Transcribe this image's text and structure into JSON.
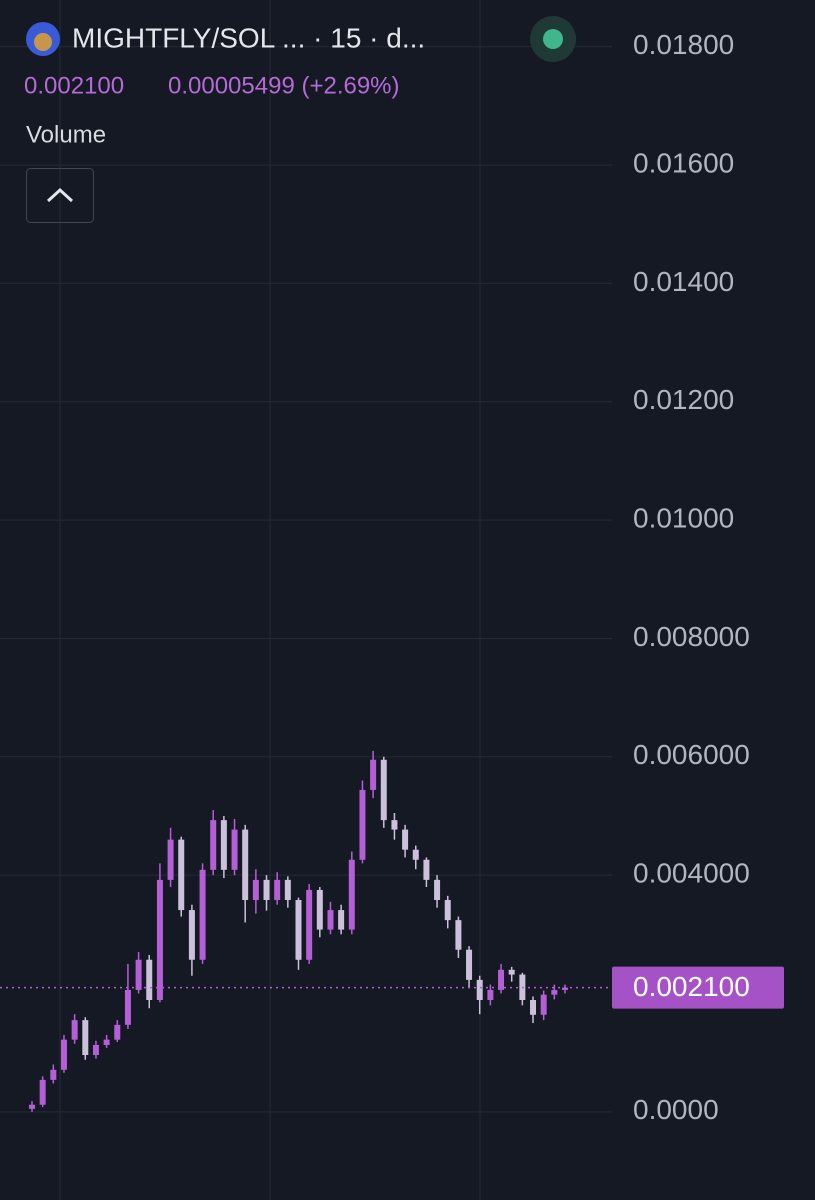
{
  "header": {
    "title": "MIGHTFLY/SOL ...  · 15 · d...",
    "change": "0.00005499 (+2.69%)",
    "volume_label": "Volume"
  },
  "chart_data": {
    "type": "candlestick",
    "ylim": [
      -0.00149,
      0.01879
    ],
    "yticks": [
      {
        "value": 0,
        "label": "0.0000"
      },
      {
        "value": 0.004,
        "label": "0.004000"
      },
      {
        "value": 0.006,
        "label": "0.006000"
      },
      {
        "value": 0.008,
        "label": "0.008000"
      },
      {
        "value": 0.01,
        "label": "0.01000"
      },
      {
        "value": 0.012,
        "label": "0.01200"
      },
      {
        "value": 0.014,
        "label": "0.01400"
      },
      {
        "value": 0.016,
        "label": "0.01600"
      },
      {
        "value": 0.018,
        "label": "0.01800"
      }
    ],
    "grid": true,
    "up_color": "#b45fd6",
    "down_color": "#cbc1db",
    "last_price": {
      "value": 0.0021,
      "label": "0.002100"
    },
    "open": [
      5e-05,
      0.00012,
      0.00054,
      0.00071,
      0.00122,
      0.00155,
      0.00096,
      0.00113,
      0.00122,
      0.00147,
      0.00206,
      0.00257,
      0.00189,
      0.00392,
      0.0046,
      0.00341,
      0.00257,
      0.00409,
      0.00493,
      0.00409,
      0.00477,
      0.00358,
      0.00392,
      0.00358,
      0.00392,
      0.00358,
      0.00257,
      0.00375,
      0.00308,
      0.00341,
      0.00308,
      0.00426,
      0.00544,
      0.00595,
      0.00493,
      0.00477,
      0.00443,
      0.00426,
      0.00392,
      0.00358,
      0.00324,
      0.00274,
      0.00223,
      0.00189,
      0.00206,
      0.0024,
      0.00232,
      0.00189,
      0.00164,
      0.00198,
      0.00206
    ],
    "close": [
      0.00012,
      0.00054,
      0.00071,
      0.00122,
      0.00155,
      0.00096,
      0.00113,
      0.00122,
      0.00147,
      0.00206,
      0.00257,
      0.00189,
      0.00392,
      0.0046,
      0.00341,
      0.00257,
      0.00409,
      0.00493,
      0.00409,
      0.00477,
      0.00358,
      0.00392,
      0.00358,
      0.00392,
      0.00358,
      0.00257,
      0.00375,
      0.00308,
      0.00341,
      0.00308,
      0.00426,
      0.00544,
      0.00595,
      0.00493,
      0.00477,
      0.00443,
      0.00426,
      0.00392,
      0.00358,
      0.00324,
      0.00274,
      0.00223,
      0.00189,
      0.00206,
      0.0024,
      0.00232,
      0.00189,
      0.00164,
      0.00198,
      0.00206,
      0.0021
    ],
    "high": [
      0.00018,
      0.0006,
      0.0008,
      0.0013,
      0.00165,
      0.0016,
      0.0012,
      0.0013,
      0.00155,
      0.0025,
      0.0027,
      0.00265,
      0.0042,
      0.0048,
      0.00465,
      0.0035,
      0.0042,
      0.0051,
      0.005,
      0.00495,
      0.00485,
      0.0041,
      0.004,
      0.00405,
      0.00398,
      0.00362,
      0.00385,
      0.0038,
      0.00355,
      0.0035,
      0.0044,
      0.0056,
      0.0061,
      0.006,
      0.00505,
      0.00485,
      0.0045,
      0.0043,
      0.004,
      0.00365,
      0.0033,
      0.0028,
      0.0023,
      0.00215,
      0.0025,
      0.00245,
      0.00235,
      0.00195,
      0.00205,
      0.00215,
      0.00215
    ],
    "low": [
      0.0,
      8e-05,
      0.00048,
      0.00066,
      0.00115,
      0.00088,
      0.0009,
      0.00108,
      0.00118,
      0.0014,
      0.002,
      0.00175,
      0.00185,
      0.0038,
      0.0033,
      0.0023,
      0.0025,
      0.004,
      0.00395,
      0.004,
      0.0032,
      0.00335,
      0.0034,
      0.0035,
      0.00345,
      0.0024,
      0.0025,
      0.00295,
      0.003,
      0.003,
      0.003,
      0.0042,
      0.0053,
      0.0048,
      0.0046,
      0.0043,
      0.0041,
      0.0038,
      0.00345,
      0.0031,
      0.0026,
      0.0021,
      0.00165,
      0.0018,
      0.002,
      0.0022,
      0.0018,
      0.0015,
      0.00155,
      0.0019,
      0.002
    ]
  }
}
